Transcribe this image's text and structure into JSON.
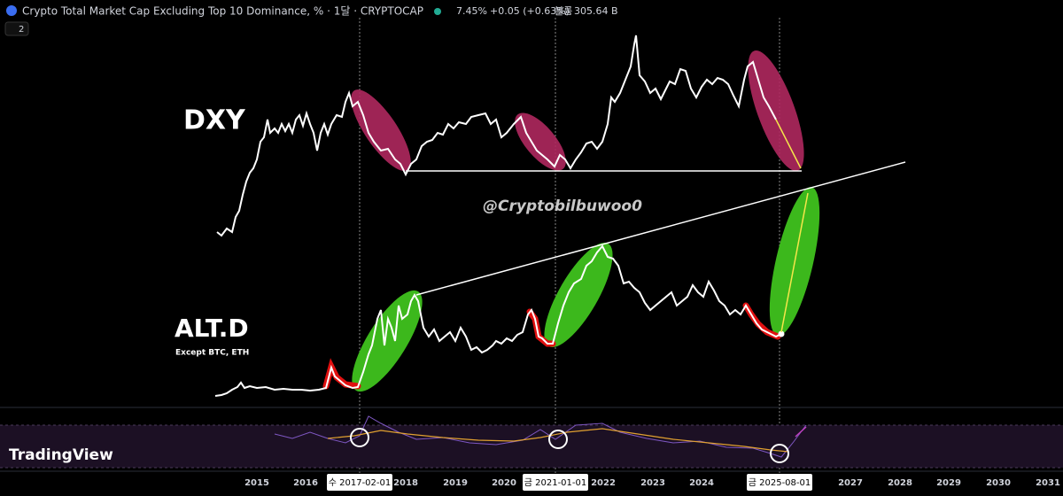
{
  "header": {
    "title": "Crypto Total Market Cap Excluding Top 10 Dominance, % · 1달 · CRYPTOCAP",
    "price": "7.45%",
    "change": "+0.05 (+0.63%)",
    "volume_label": "볼륨",
    "volume": "305.64 B",
    "indicator_count": "2"
  },
  "annotations": {
    "dxy": "DXY",
    "altd": "ALT.D",
    "altd_note": "Except BTC, ETH",
    "watermark": "@Cryptobilbuwoo0"
  },
  "logo": "TradingView",
  "x_axis": {
    "labels": [
      "2015",
      "2016",
      "2018",
      "2019",
      "2020",
      "2022",
      "2023",
      "2024",
      "2027",
      "2028",
      "2029",
      "2030",
      "2031"
    ],
    "markers": [
      "수 2017-02-01",
      "금 2021-01-01",
      "금 2025-08-01"
    ]
  }
}
